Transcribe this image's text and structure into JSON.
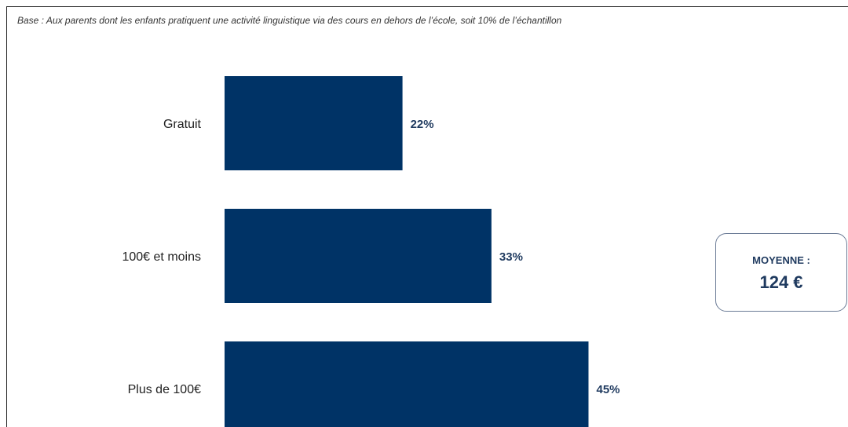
{
  "base_note": "Base : Aux parents dont les enfants pratiquent une activité linguistique via des cours en dehors de l’école, soit 10% de l’échantillon",
  "chart_data": {
    "type": "bar",
    "orientation": "horizontal",
    "categories": [
      "Gratuit",
      "100€ et moins",
      "Plus de 100€"
    ],
    "values": [
      22,
      33,
      45
    ],
    "value_labels": [
      "22%",
      "33%",
      "45%"
    ],
    "unit": "%",
    "bar_color": "#003366",
    "xlim": [
      0,
      100
    ]
  },
  "average": {
    "label": "MOYENNE :",
    "value": "124 €"
  }
}
